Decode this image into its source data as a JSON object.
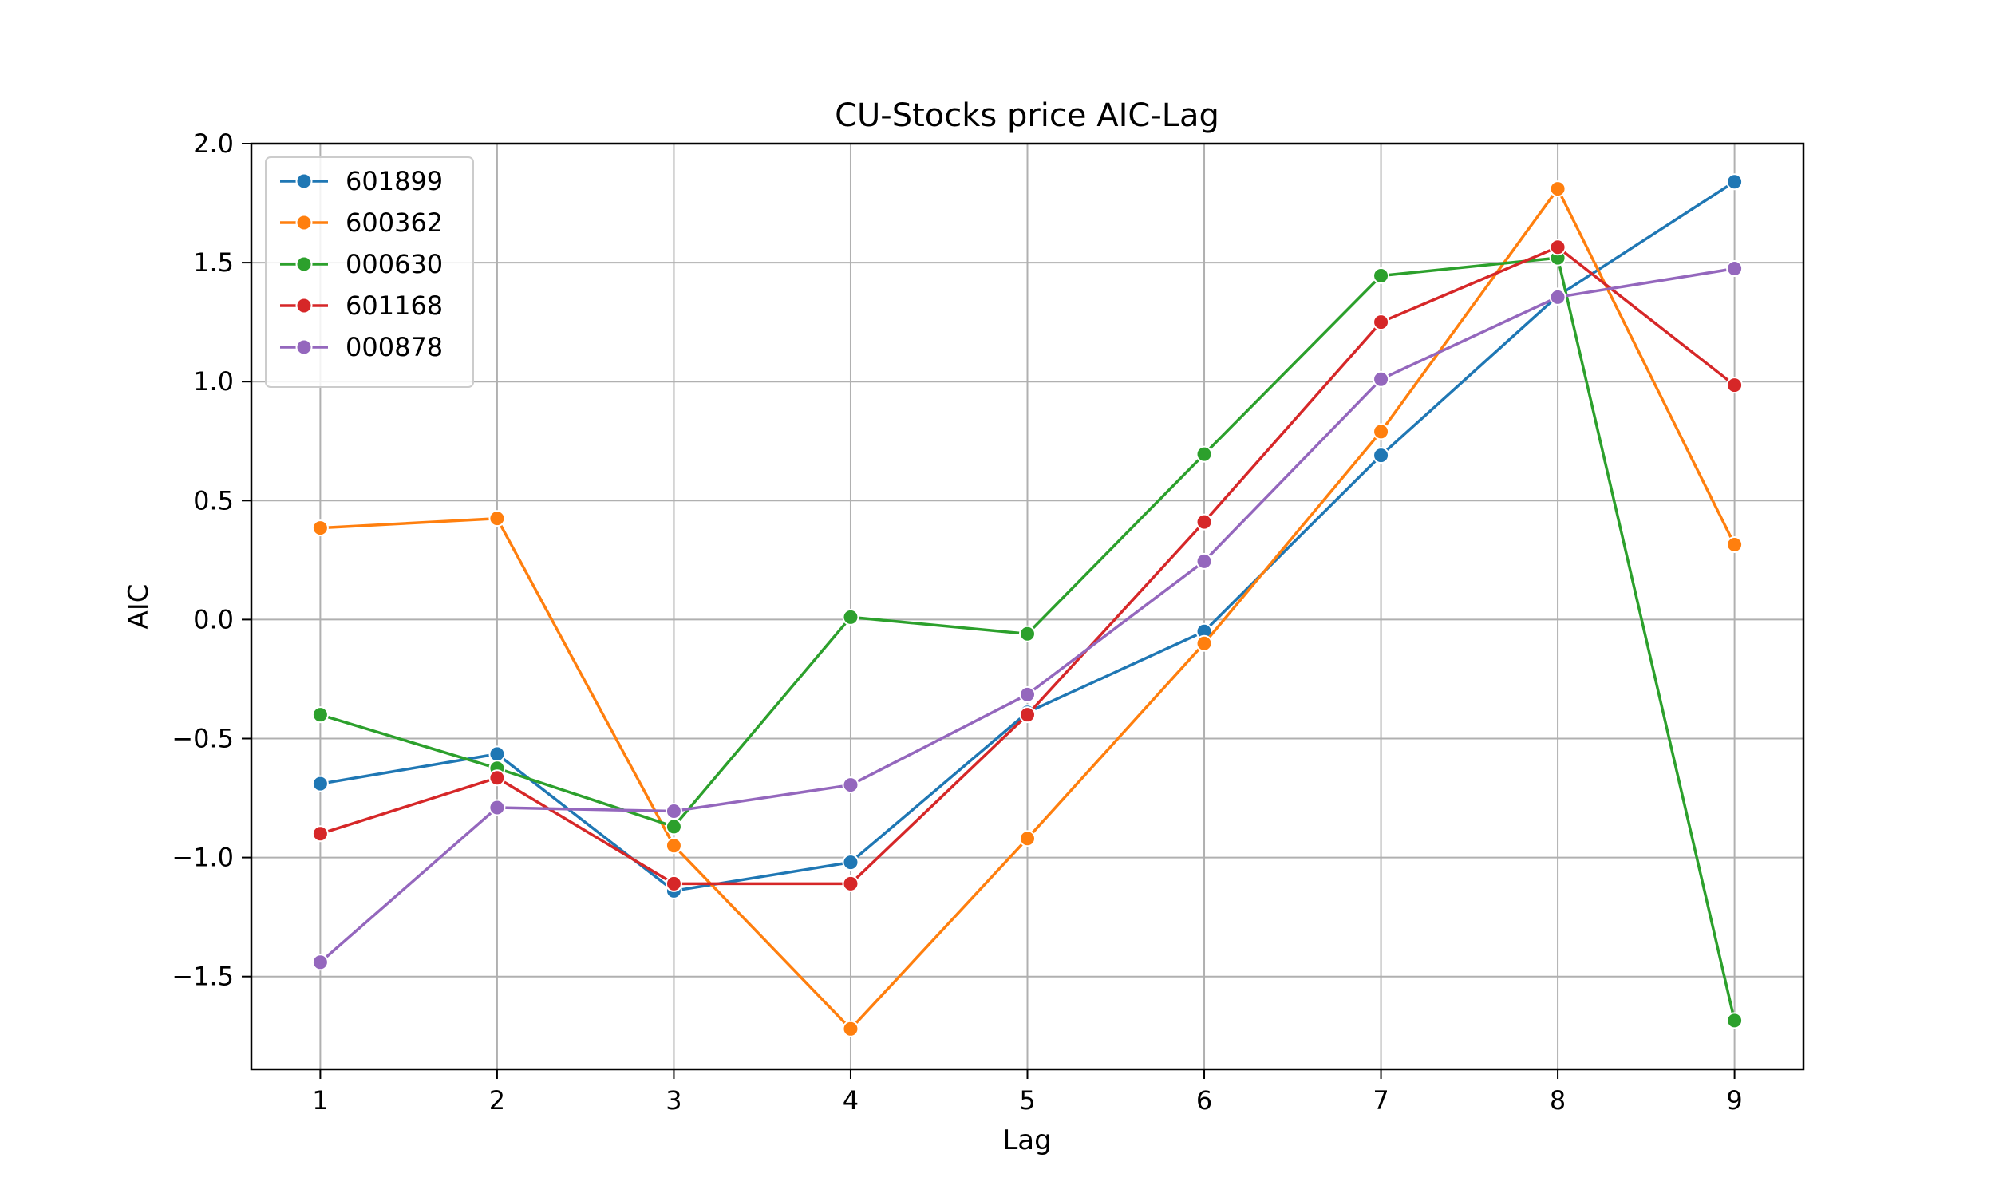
{
  "chart_data": {
    "type": "line",
    "title": "CU-Stocks price AIC-Lag",
    "xlabel": "Lag",
    "ylabel": "AIC",
    "x": [
      1,
      2,
      3,
      4,
      5,
      6,
      7,
      8,
      9
    ],
    "xlim": [
      0.61,
      9.39
    ],
    "ylim": [
      -1.89,
      2.0
    ],
    "yticks": [
      2.0,
      1.5,
      1.0,
      0.5,
      0.0,
      -0.5,
      -1.0,
      -1.5
    ],
    "ytick_labels": [
      "2.0",
      "1.5",
      "1.0",
      "0.5",
      "0.0",
      "−0.5",
      "−1.0",
      "−1.5"
    ],
    "grid": true,
    "legend_position": "top-left",
    "series": [
      {
        "name": "601899",
        "color": "#1f77b4",
        "values": [
          -0.69,
          -0.565,
          -1.14,
          -1.02,
          -0.39,
          -0.05,
          0.69,
          1.36,
          1.84
        ]
      },
      {
        "name": "600362",
        "color": "#ff7f0e",
        "values": [
          0.385,
          0.425,
          -0.95,
          -1.72,
          -0.92,
          -0.1,
          0.79,
          1.81,
          0.315
        ]
      },
      {
        "name": "000630",
        "color": "#2ca02c",
        "values": [
          -0.4,
          -0.625,
          -0.87,
          0.01,
          -0.06,
          0.695,
          1.445,
          1.52,
          -1.685
        ]
      },
      {
        "name": "601168",
        "color": "#d62728",
        "values": [
          -0.9,
          -0.665,
          -1.11,
          -1.11,
          -0.4,
          0.41,
          1.25,
          1.565,
          0.985
        ]
      },
      {
        "name": "000878",
        "color": "#9467bd",
        "values": [
          -1.44,
          -0.79,
          -0.805,
          -0.695,
          -0.315,
          0.245,
          1.01,
          1.355,
          1.475
        ]
      }
    ]
  }
}
